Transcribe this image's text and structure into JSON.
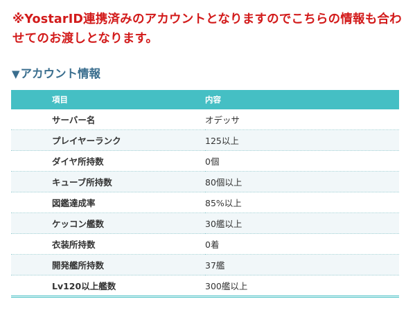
{
  "notice": "※YostarID連携済みのアカウントとなりますのでこちらの情報も合わせてのお渡しとなります。",
  "section": {
    "marker": "▼",
    "title": "アカウント情報"
  },
  "table": {
    "headers": [
      "項目",
      "内容"
    ],
    "rows": [
      {
        "item": "サーバー名",
        "value": "オデッサ"
      },
      {
        "item": "プレイヤーランク",
        "value": "125以上"
      },
      {
        "item": "ダイヤ所持数",
        "value": "0個"
      },
      {
        "item": "キューブ所持数",
        "value": "80個以上"
      },
      {
        "item": "図鑑達成率",
        "value": "85%以上"
      },
      {
        "item": "ケッコン艦数",
        "value": "30艦以上"
      },
      {
        "item": "衣装所持数",
        "value": "0着"
      },
      {
        "item": "開発艦所持数",
        "value": "37艦"
      },
      {
        "item": "Lv120以上艦数",
        "value": "300艦以上"
      }
    ]
  },
  "colors": {
    "notice": "#d21a1a",
    "heading": "#3a6e8e",
    "table_header_bg": "#45bfc4",
    "row_alt_bg": "#f1f7f9"
  }
}
